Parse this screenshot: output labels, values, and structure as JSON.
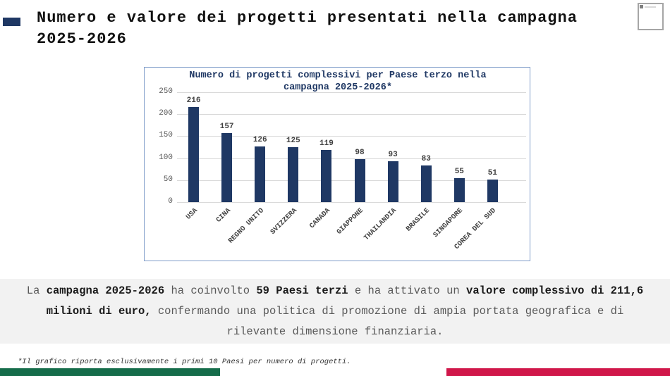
{
  "slide": {
    "title": "Numero e valore dei progetti presentati nella campagna 2025-2026"
  },
  "header_icon": "image-placeholder-icon",
  "chart_data": {
    "type": "bar",
    "title": "Numero di progetti complessivi per Paese terzo nella campagna 2025-2026*",
    "categories": [
      "USA",
      "CINA",
      "REGNO UNITO",
      "SVIZZERA",
      "CANADA",
      "GIAPPONE",
      "THAILANDIA",
      "BRASILE",
      "SINGAPORE",
      "COREA DEL SUD"
    ],
    "values": [
      216,
      157,
      126,
      125,
      119,
      98,
      93,
      83,
      55,
      51
    ],
    "xlabel": "",
    "ylabel": "",
    "ylim": [
      0,
      250
    ],
    "yticks": [
      0,
      50,
      100,
      150,
      200,
      250
    ],
    "grid": true,
    "legend": false,
    "bar_color": "#1F3864"
  },
  "summary": {
    "segments": [
      {
        "text": "La ",
        "bold": false
      },
      {
        "text": "campagna 2025-2026",
        "bold": true
      },
      {
        "text": " ha coinvolto ",
        "bold": false
      },
      {
        "text": "59 Paesi terzi",
        "bold": true
      },
      {
        "text": " e ha attivato un ",
        "bold": false
      },
      {
        "text": "valore complessivo di 211,6 milioni di euro,",
        "bold": true
      },
      {
        "text": " confermando una politica di promozione di ampia portata geografica e di rilevante dimensione finanziaria.",
        "bold": false
      }
    ]
  },
  "footnote": {
    "text": "*Il grafico riporta esclusivamente i primi 10 Paesi per numero di progetti."
  },
  "colors": {
    "accent_navy": "#1F3864",
    "chart_border": "#7F9CC9",
    "gridline": "#D9D9D9",
    "summary_background": "#F2F2F2",
    "flag_green": "#156C4A",
    "flag_white": "#FFFFFF",
    "flag_red": "#D0174A"
  }
}
